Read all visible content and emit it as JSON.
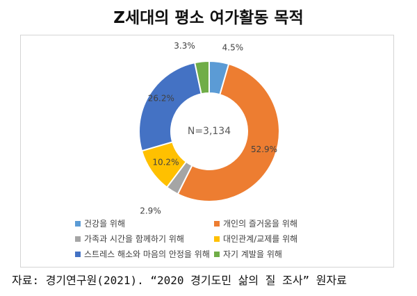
{
  "header": {
    "title": "Z세대의 평소 여가활동 목적"
  },
  "chart_data": {
    "type": "pie",
    "donut": true,
    "title": "Z세대의 평소 여가활동 목적",
    "center_label": "N=3,134",
    "legend_position": "bottom",
    "slices": [
      {
        "label": "건강을 위해",
        "value": 4.5,
        "display": "4.5%",
        "color": "#5b9bd5"
      },
      {
        "label": "개인의 즐거움을 위해",
        "value": 52.9,
        "display": "52.9%",
        "color": "#ed7d31"
      },
      {
        "label": "가족과 시간을 함께하기 위해",
        "value": 2.9,
        "display": "2.9%",
        "color": "#a5a5a5"
      },
      {
        "label": "대인관계/교제를 위해",
        "value": 10.2,
        "display": "10.2%",
        "color": "#ffc000"
      },
      {
        "label": "스트레스 해소와 마음의 안정을 위해",
        "value": 26.2,
        "display": "26.2%",
        "color": "#4472c4"
      },
      {
        "label": "자기 계발을 위해",
        "value": 3.3,
        "display": "3.3%",
        "color": "#70ad47"
      }
    ]
  },
  "legend": {
    "items": [
      {
        "label": "건강을 위해",
        "color": "#5b9bd5"
      },
      {
        "label": "개인의 즐거움을 위해",
        "color": "#ed7d31"
      },
      {
        "label": "가족과 시간을 함께하기 위해",
        "color": "#a5a5a5"
      },
      {
        "label": "대인관계/교제를 위해",
        "color": "#ffc000"
      },
      {
        "label": "스트레스 해소와 마음의 안정을 위해",
        "color": "#4472c4"
      },
      {
        "label": "자기 계발을 위해",
        "color": "#70ad47"
      }
    ]
  },
  "footer": {
    "source": "자료: 경기연구원(2021). “2020 경기도민 삶의 질 조사” 원자료"
  }
}
